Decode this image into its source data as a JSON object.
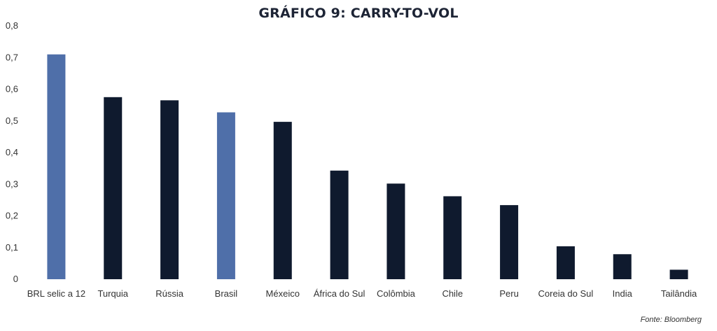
{
  "chart_data": {
    "type": "bar",
    "title": "GRÁFICO 9: CARRY-TO-VOL",
    "xlabel": "",
    "ylabel": "",
    "ylim": [
      0,
      0.8
    ],
    "yticks": [
      0,
      0.1,
      0.2,
      0.3,
      0.4,
      0.5,
      0.6,
      0.7,
      0.8
    ],
    "ytick_labels": [
      "0",
      "0,1",
      "0,2",
      "0,3",
      "0,4",
      "0,5",
      "0,6",
      "0,7",
      "0,8"
    ],
    "categories": [
      "BRL selic a 12",
      "Turquia",
      "Rússia",
      "Brasil",
      "Méxeico",
      "África do Sul",
      "Colômbia",
      "Chile",
      "Peru",
      "Coreia do Sul",
      "India",
      "Tailândia"
    ],
    "values": [
      0.71,
      0.575,
      0.565,
      0.527,
      0.497,
      0.343,
      0.302,
      0.262,
      0.234,
      0.104,
      0.079,
      0.03
    ],
    "highlighted": [
      true,
      false,
      false,
      true,
      false,
      false,
      false,
      false,
      false,
      false,
      false,
      false
    ],
    "grid": false,
    "legend": "none",
    "colors": {
      "default": "#0f1a2e",
      "highlight": "#4f6fa9",
      "text": "#333333",
      "title": "#1d2435"
    }
  },
  "source": "Fonte: Bloomberg"
}
